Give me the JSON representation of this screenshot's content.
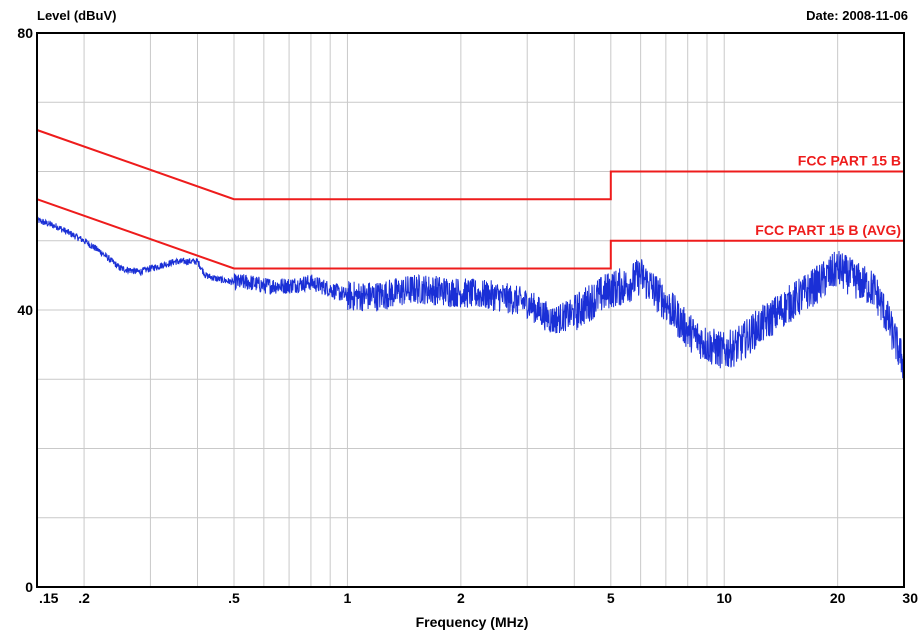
{
  "header": {
    "ylabel": "Level (dBuV)",
    "date": "Date: 2008-11-06"
  },
  "chart_data": {
    "type": "line",
    "title": "",
    "xlabel": "Frequency (MHz)",
    "ylabel": "Level (dBuV)",
    "xscale": "log",
    "xlim": [
      0.15,
      30
    ],
    "ylim": [
      0,
      80
    ],
    "grid": true,
    "x_ticks": [
      {
        "value": 0.15,
        "label": ".15"
      },
      {
        "value": 0.2,
        "label": ".2"
      },
      {
        "value": 0.5,
        "label": ".5"
      },
      {
        "value": 1,
        "label": "1"
      },
      {
        "value": 2,
        "label": "2"
      },
      {
        "value": 5,
        "label": "5"
      },
      {
        "value": 10,
        "label": "10"
      },
      {
        "value": 20,
        "label": "20"
      },
      {
        "value": 30,
        "label": "30"
      }
    ],
    "x_grid_values": [
      0.2,
      0.3,
      0.4,
      0.5,
      0.6,
      0.7,
      0.8,
      0.9,
      1,
      2,
      3,
      4,
      5,
      6,
      7,
      8,
      9,
      10,
      20
    ],
    "y_ticks": [
      {
        "value": 0,
        "label": "0"
      },
      {
        "value": 40,
        "label": "40"
      },
      {
        "value": 80,
        "label": "80"
      }
    ],
    "y_grid_values": [
      10,
      20,
      30,
      40,
      50,
      60,
      70
    ],
    "limit_lines": [
      {
        "name": "FCC PART 15 B",
        "color": "#ee1c1c",
        "points": [
          [
            0.15,
            66
          ],
          [
            0.5,
            56
          ],
          [
            5,
            56
          ],
          [
            5,
            60
          ],
          [
            30,
            60
          ]
        ]
      },
      {
        "name": "FCC PART 15 B (AVG)",
        "color": "#ee1c1c",
        "points": [
          [
            0.15,
            56
          ],
          [
            0.5,
            46
          ],
          [
            5,
            46
          ],
          [
            5,
            50
          ],
          [
            30,
            50
          ]
        ]
      }
    ],
    "series": [
      {
        "color": "#1a2fd6",
        "x": [
          0.15,
          0.17,
          0.2,
          0.22,
          0.25,
          0.28,
          0.3,
          0.35,
          0.4,
          0.42,
          0.45,
          0.5,
          0.55,
          0.6,
          0.7,
          0.8,
          0.9,
          1.0,
          1.2,
          1.5,
          1.6,
          2.0,
          2.5,
          3.0,
          3.5,
          4.0,
          4.5,
          5.0,
          5.5,
          6.0,
          7.0,
          8.0,
          9.0,
          10.0,
          11.0,
          12.0,
          15.0,
          18.0,
          20.0,
          22.0,
          25.0,
          27.0,
          30.0
        ],
        "y": [
          53,
          52,
          50,
          48.5,
          46,
          45.5,
          46,
          47,
          47,
          45,
          44.5,
          44,
          44,
          43.5,
          43.5,
          44,
          43,
          42,
          42,
          43,
          43,
          42.5,
          42,
          41,
          38.5,
          39.5,
          41.5,
          43,
          43.5,
          45,
          41,
          37,
          35,
          34,
          35,
          37,
          41,
          44,
          46,
          44.5,
          43,
          39,
          32
        ]
      }
    ]
  }
}
